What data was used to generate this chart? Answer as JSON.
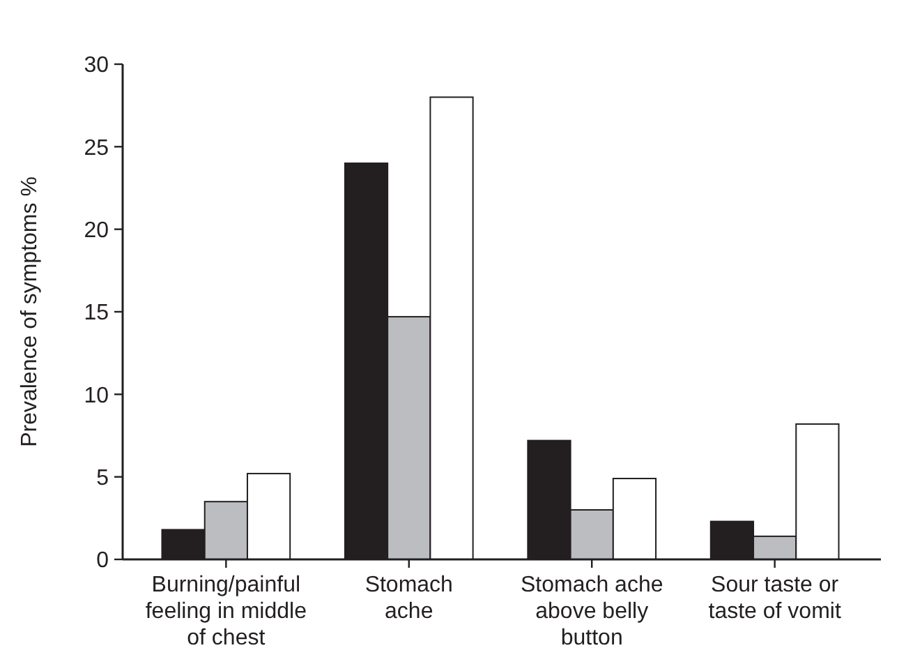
{
  "chart_data": {
    "type": "bar",
    "ylabel": "Prevalence of symptoms %",
    "categories": [
      "Burning/painful\nfeeling in middle\nof chest",
      "Stomach\nache",
      "Stomach ache\nabove belly\nbutton",
      "Sour taste or\ntaste of vomit"
    ],
    "series": [
      {
        "color": "#231f20",
        "values": [
          1.8,
          24,
          7.2,
          2.3
        ]
      },
      {
        "color": "#bcbdc0",
        "values": [
          3.5,
          14.7,
          3.0,
          1.4
        ]
      },
      {
        "color": "#ffffff",
        "values": [
          5.2,
          28,
          4.9,
          8.2
        ]
      }
    ],
    "ylim": [
      0,
      30
    ],
    "yticks": [
      0,
      5,
      10,
      15,
      20,
      25,
      30
    ],
    "grid": false
  }
}
